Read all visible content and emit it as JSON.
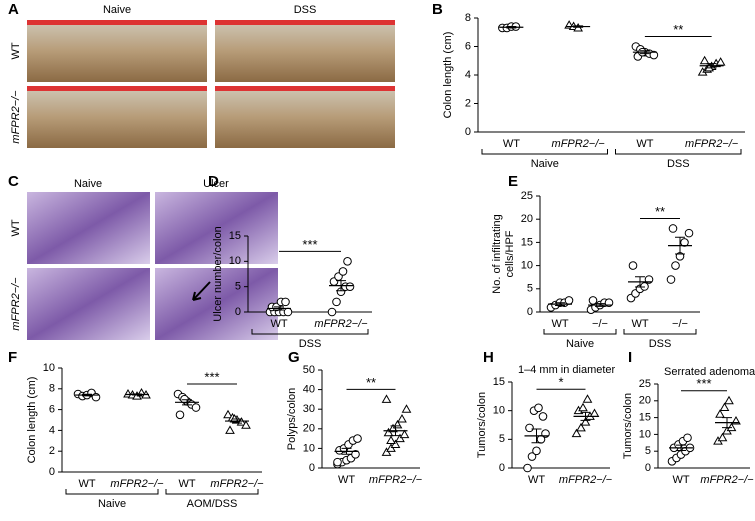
{
  "panel_a": {
    "letter": "A",
    "columns": [
      "Naive",
      "DSS"
    ],
    "rows": [
      "WT",
      "mFPR2−/−"
    ]
  },
  "panel_c": {
    "letter": "C",
    "columns": [
      "Naive",
      "Ulcer"
    ],
    "rows": [
      "WT",
      "mFPR2−/−"
    ]
  },
  "chart_data": [
    {
      "type": "dotplot",
      "letter": "B",
      "ylabel": [
        "Colon length (cm)"
      ],
      "ylim": [
        0,
        8
      ],
      "yticks": [
        0,
        2,
        4,
        6,
        8
      ],
      "categories": [
        "WT",
        "mFPR2−/−",
        "WT",
        "mFPR2−/−"
      ],
      "groups": [
        "Naive",
        "DSS"
      ],
      "markers": [
        "circle",
        "triangle",
        "circle",
        "triangle"
      ],
      "points": [
        [
          7.3,
          7.3,
          7.4,
          7.4
        ],
        [
          7.5,
          7.4,
          7.3
        ],
        [
          6.0,
          5.8,
          5.6,
          5.5,
          5.4,
          5.3,
          5.6
        ],
        [
          4.2,
          4.4,
          4.6,
          4.8,
          4.9,
          5.0,
          4.5
        ]
      ],
      "means": [
        7.35,
        7.4,
        5.6,
        4.65
      ],
      "sems": [
        0.05,
        0.05,
        0.1,
        0.15
      ],
      "significance": "**"
    },
    {
      "type": "dotplot",
      "letter": "D",
      "ylabel": [
        "Ulcer number/colon"
      ],
      "ylim": [
        0,
        15
      ],
      "yticks": [
        0,
        5,
        10,
        15
      ],
      "categories": [
        "WT",
        "mFPR2−/−"
      ],
      "groups": [
        "DSS"
      ],
      "markers": [
        "circle",
        "circle"
      ],
      "points": [
        [
          0,
          0,
          0,
          0,
          0,
          1,
          1,
          2,
          2
        ],
        [
          0,
          2,
          4,
          5,
          5,
          6,
          7,
          8,
          10
        ]
      ],
      "means": [
        0.7,
        5.2
      ],
      "sems": [
        0.3,
        1.0
      ],
      "significance": "***"
    },
    {
      "type": "dotplot",
      "letter": "E",
      "ylabel": [
        "No. of infiltrating",
        "cells/HPF"
      ],
      "ylim": [
        0,
        25
      ],
      "yticks": [
        0,
        5,
        10,
        15,
        20,
        25
      ],
      "categories": [
        "WT",
        "−/−",
        "WT",
        "−/−"
      ],
      "groups": [
        "Naive",
        "DSS"
      ],
      "markers": [
        "circle",
        "circle",
        "circle",
        "circle"
      ],
      "points": [
        [
          1,
          1.5,
          2,
          2,
          2.5
        ],
        [
          0.5,
          1,
          1.5,
          2,
          2,
          2.5
        ],
        [
          3,
          4,
          5,
          5.5,
          7,
          10
        ],
        [
          7,
          10,
          12,
          15,
          17,
          18
        ]
      ],
      "means": [
        1.7,
        1.5,
        6.5,
        14.3
      ],
      "sems": [
        0.3,
        0.3,
        1.1,
        1.8
      ],
      "significance": "**"
    },
    {
      "type": "dotplot",
      "letter": "F",
      "ylabel": [
        "Colon length (cm)"
      ],
      "ylim": [
        0,
        10
      ],
      "yticks": [
        0,
        2,
        4,
        6,
        8,
        10
      ],
      "categories": [
        "WT",
        "mFPR2−/−",
        "WT",
        "mFPR2−/−"
      ],
      "groups": [
        "Naive",
        "AOM/DSS"
      ],
      "markers": [
        "circle",
        "triangle",
        "circle",
        "triangle"
      ],
      "points": [
        [
          7.5,
          7.3,
          7.4,
          7.6,
          7.2
        ],
        [
          7.5,
          7.4,
          7.3,
          7.6,
          7.4
        ],
        [
          7.5,
          7.2,
          6.8,
          6.5,
          6.2,
          5.5,
          7.0
        ],
        [
          5.5,
          5.2,
          5.0,
          4.8,
          4.5,
          4.0,
          5.1
        ]
      ],
      "means": [
        7.4,
        7.45,
        6.7,
        4.9
      ],
      "sems": [
        0.08,
        0.05,
        0.25,
        0.2
      ],
      "significance": "***"
    },
    {
      "type": "dotplot",
      "letter": "G",
      "ylabel": [
        "Polyps/colon"
      ],
      "ylim": [
        0,
        50
      ],
      "yticks": [
        0,
        10,
        20,
        30,
        40,
        50
      ],
      "categories": [
        "WT",
        "mFPR2−/−"
      ],
      "markers": [
        "circle",
        "triangle"
      ],
      "points": [
        [
          2,
          3,
          4,
          5,
          7,
          9,
          10,
          12,
          14,
          15,
          3
        ],
        [
          8,
          10,
          12,
          15,
          17,
          18,
          20,
          22,
          25,
          30,
          35,
          14
        ]
      ],
      "means": [
        8.5,
        19
      ],
      "sems": [
        1.5,
        2.5
      ],
      "significance": "**"
    },
    {
      "type": "dotplot",
      "letter": "H",
      "title": "1–4 mm in diameter",
      "ylabel": [
        "Tumors/colon"
      ],
      "ylim": [
        0,
        15
      ],
      "yticks": [
        0,
        5,
        10,
        15
      ],
      "categories": [
        "WT",
        "mFPR2−/−"
      ],
      "markers": [
        "circle",
        "triangle"
      ],
      "points": [
        [
          0,
          2,
          3,
          5,
          6,
          7,
          10,
          10.5,
          9
        ],
        [
          6,
          7,
          8,
          9,
          9.5,
          10,
          10.5,
          12
        ]
      ],
      "means": [
        5.6,
        9
      ],
      "sems": [
        1.2,
        0.7
      ],
      "significance": "*"
    },
    {
      "type": "dotplot",
      "letter": "I",
      "title": "Serrated adenomas",
      "ylabel": [
        "Tumors/colon"
      ],
      "ylim": [
        0,
        25
      ],
      "yticks": [
        0,
        5,
        10,
        15,
        20,
        25
      ],
      "categories": [
        "WT",
        "mFPR2−/−"
      ],
      "markers": [
        "circle",
        "triangle"
      ],
      "points": [
        [
          2,
          3,
          4,
          5,
          6,
          6,
          7,
          8,
          9
        ],
        [
          8,
          9,
          11,
          12,
          14,
          16,
          18,
          20
        ]
      ],
      "means": [
        6,
        13.5
      ],
      "sems": [
        0.8,
        1.5
      ],
      "significance": "***"
    }
  ]
}
